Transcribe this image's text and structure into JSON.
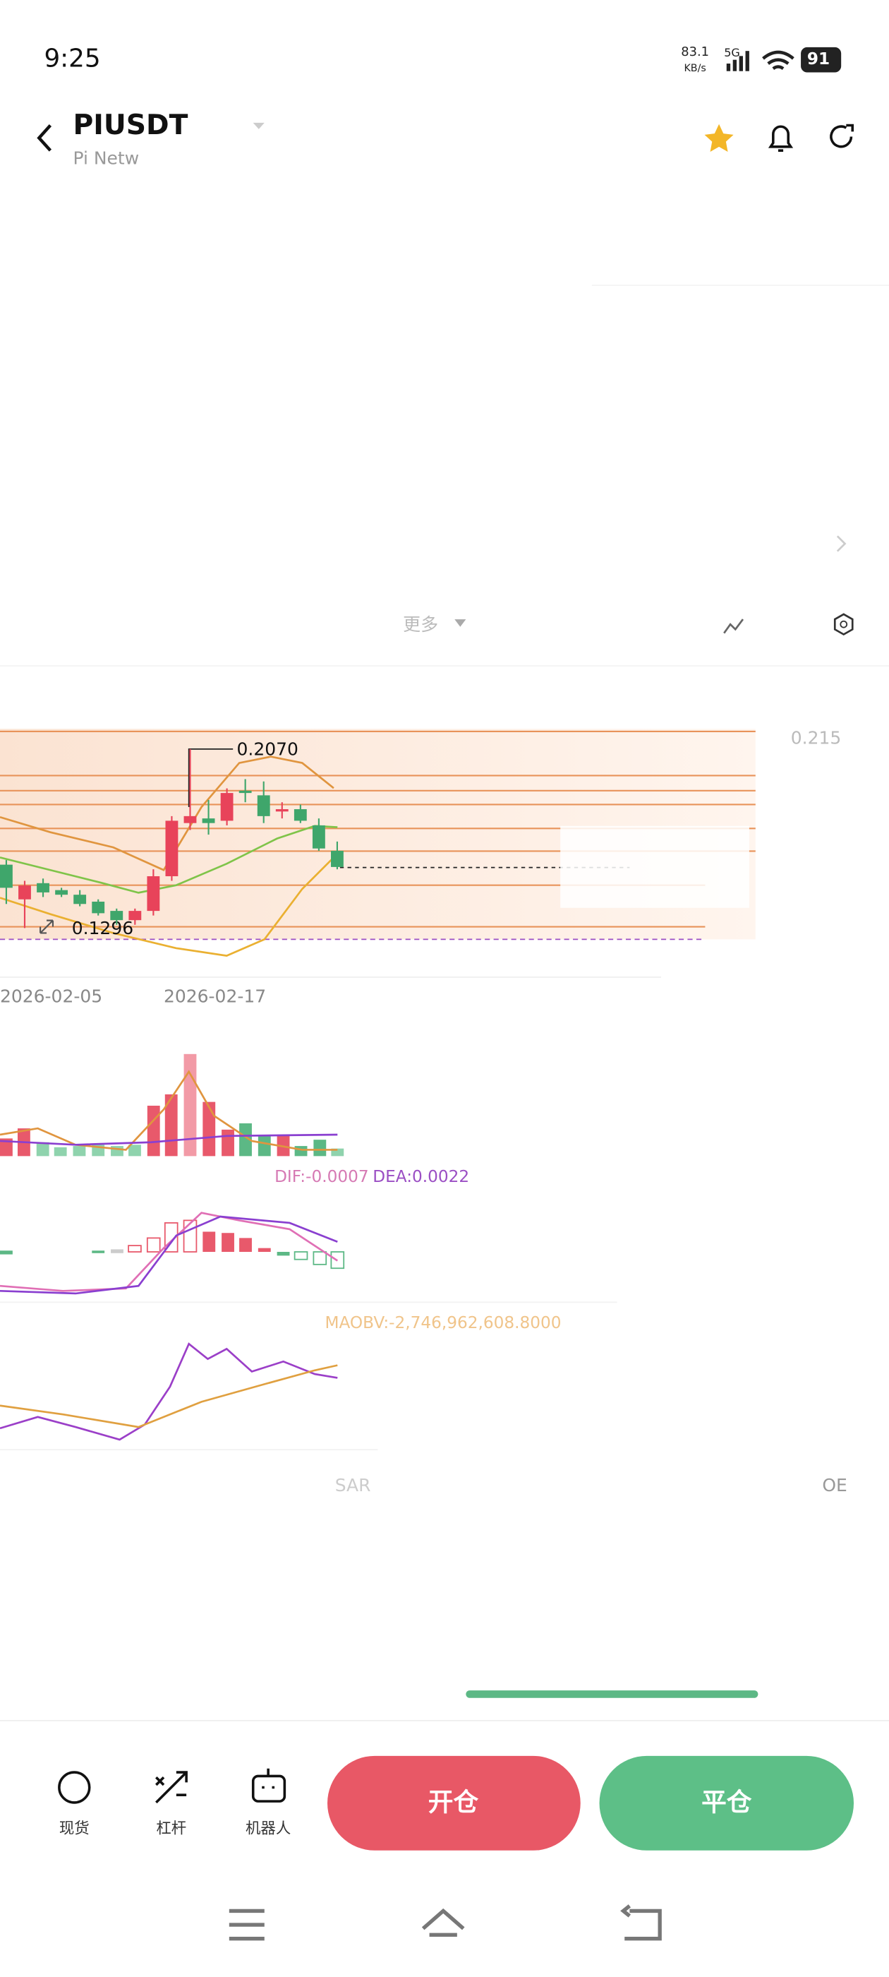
{
  "status_bar": {
    "time": "9:25",
    "speed": "83.1",
    "speed_unit": "KB/s",
    "network": "5G",
    "battery": "91"
  },
  "header": {
    "symbol": "PIUSDT",
    "name": "Pi Netw"
  },
  "toolbar": {
    "more": "更多"
  },
  "chart": {
    "price_label": "0.215",
    "high_label": "0.2070",
    "low_label": "0.1296",
    "dates": [
      "2026-02-05",
      "2026-02-17"
    ],
    "kline": [
      {
        "open": 0.157,
        "close": 0.147,
        "high": 0.159,
        "low": 0.14
      },
      {
        "open": 0.142,
        "close": 0.148,
        "high": 0.15,
        "low": 0.1296
      },
      {
        "open": 0.149,
        "close": 0.145,
        "high": 0.151,
        "low": 0.143
      },
      {
        "open": 0.146,
        "close": 0.144,
        "high": 0.147,
        "low": 0.143
      },
      {
        "open": 0.144,
        "close": 0.14,
        "high": 0.146,
        "low": 0.139
      },
      {
        "open": 0.141,
        "close": 0.136,
        "high": 0.142,
        "low": 0.135
      },
      {
        "open": 0.137,
        "close": 0.133,
        "high": 0.138,
        "low": 0.131
      },
      {
        "open": 0.133,
        "close": 0.137,
        "high": 0.138,
        "low": 0.131
      },
      {
        "open": 0.137,
        "close": 0.152,
        "high": 0.155,
        "low": 0.135
      },
      {
        "open": 0.152,
        "close": 0.176,
        "high": 0.178,
        "low": 0.15
      },
      {
        "open": 0.175,
        "close": 0.178,
        "high": 0.207,
        "low": 0.172
      },
      {
        "open": 0.177,
        "close": 0.175,
        "high": 0.185,
        "low": 0.17
      },
      {
        "open": 0.176,
        "close": 0.188,
        "high": 0.19,
        "low": 0.174
      },
      {
        "open": 0.189,
        "close": 0.188,
        "high": 0.194,
        "low": 0.184
      },
      {
        "open": 0.187,
        "close": 0.178,
        "high": 0.193,
        "low": 0.175
      },
      {
        "open": 0.18,
        "close": 0.181,
        "high": 0.184,
        "low": 0.177
      },
      {
        "open": 0.181,
        "close": 0.176,
        "high": 0.183,
        "low": 0.175
      },
      {
        "open": 0.174,
        "close": 0.164,
        "high": 0.177,
        "low": 0.163
      },
      {
        "open": 0.163,
        "close": 0.156,
        "high": 0.167,
        "low": 0.155
      }
    ]
  },
  "indicators": {
    "dif": "DIF:-0.0007",
    "dea": "DEA:0.0022",
    "maobv": "MAOBV:-2,746,962,608.8000",
    "sar": "SAR",
    "obv": "OE"
  },
  "bottom_nav": {
    "spot": "现货",
    "leverage": "杠杆",
    "bot": "机器人",
    "open": "开仓",
    "close": "平仓"
  }
}
